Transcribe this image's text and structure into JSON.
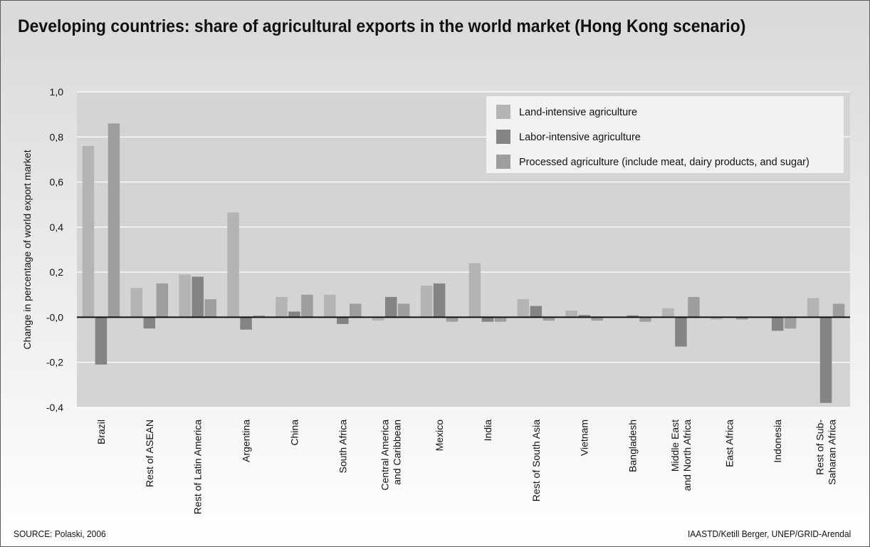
{
  "header": {
    "title": "Developing countries: share of agricultural exports in the world market (Hong Kong scenario)"
  },
  "footer": {
    "source": "SOURCE: Polaski, 2006",
    "credit": "IAASTD/Ketill Berger, UNEP/GRID-Arendal"
  },
  "colors": {
    "land": "#b4b4b4",
    "labor": "#848484",
    "processed": "#9e9e9e",
    "plot_bg": "#d4d4d4",
    "gridline": "#ffffff",
    "zero_line": "#111111"
  },
  "chart_data": {
    "type": "bar",
    "title": "Developing countries: share of agricultural exports in the world market (Hong Kong scenario)",
    "ylabel": "Change in percentage of world export market",
    "xlabel": "",
    "ylim": [
      -0.4,
      1.0
    ],
    "yticks": [
      1.0,
      0.8,
      0.6,
      0.4,
      0.2,
      0.0,
      -0.2,
      -0.4
    ],
    "ytick_labels": [
      "1,0",
      "0,8",
      "0,6",
      "0,4",
      "0,2",
      "-0,0",
      "-0,2",
      "-0,4"
    ],
    "grid": true,
    "legend_position": "top-right",
    "categories": [
      [
        "Brazil"
      ],
      [
        "Rest of ASEAN"
      ],
      [
        "Rest of Latin America"
      ],
      [
        "Argentina"
      ],
      [
        "China"
      ],
      [
        "South Africa"
      ],
      [
        "Central America",
        "and Caribbean"
      ],
      [
        "Mexico"
      ],
      [
        "India"
      ],
      [
        "Rest of South Asia"
      ],
      [
        "Vietnam"
      ],
      [
        "Bangladesh"
      ],
      [
        "Middle East",
        "and North Africa"
      ],
      [
        "East Africa"
      ],
      [
        "Indonesia"
      ],
      [
        "Rest of Sub-",
        "Saharan Africa"
      ]
    ],
    "series": [
      {
        "name": "Land-intensive agriculture",
        "values": [
          0.76,
          0.13,
          0.19,
          0.465,
          0.09,
          0.1,
          -0.015,
          0.14,
          0.24,
          0.08,
          0.03,
          0.0,
          0.04,
          -0.01,
          0.0,
          0.085
        ]
      },
      {
        "name": "Labor-intensive agriculture",
        "values": [
          -0.21,
          -0.05,
          0.18,
          -0.055,
          0.025,
          -0.03,
          0.09,
          0.15,
          -0.02,
          0.05,
          0.01,
          0.008,
          -0.13,
          0.0,
          -0.06,
          -0.38
        ]
      },
      {
        "name": "Processed agriculture (include meat, dairy products, and sugar)",
        "values": [
          0.86,
          0.15,
          0.08,
          0.008,
          0.1,
          0.06,
          0.06,
          -0.02,
          -0.02,
          -0.015,
          -0.015,
          -0.02,
          0.09,
          -0.01,
          -0.05,
          0.06
        ]
      }
    ]
  }
}
